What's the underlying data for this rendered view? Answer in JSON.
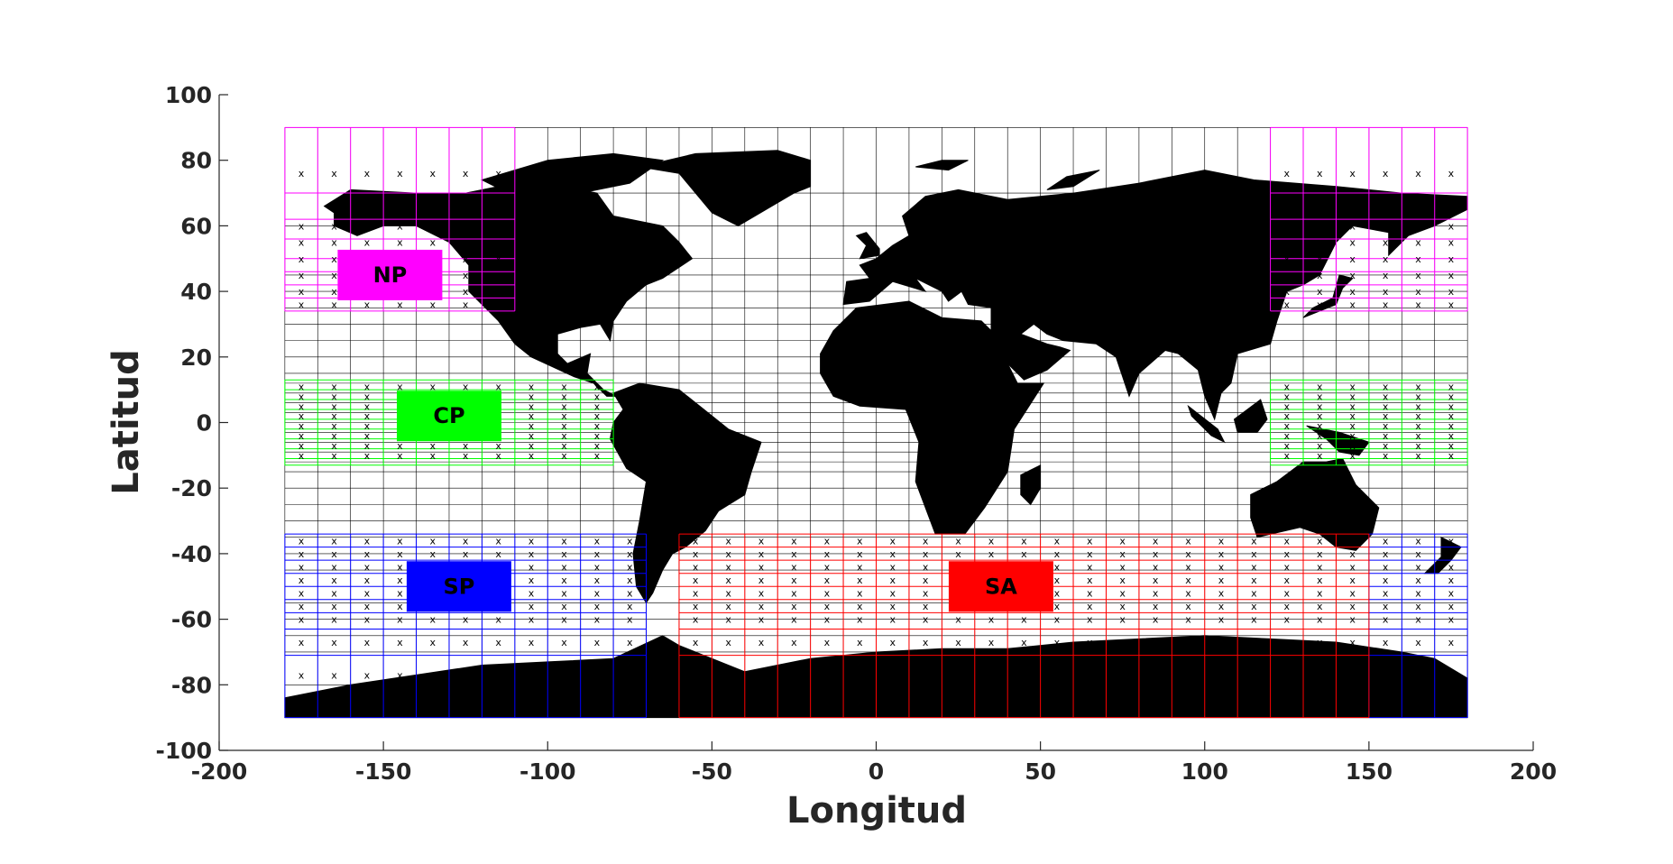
{
  "chart_data": {
    "type": "scatter",
    "title": "",
    "xlabel": "Longitud",
    "ylabel": "Latitud",
    "xlim": [
      -200,
      200
    ],
    "ylim": [
      -100,
      100
    ],
    "x_ticks": [
      "-200",
      "-150",
      "-100",
      "-50",
      "0",
      "50",
      "100",
      "150",
      "200"
    ],
    "y_ticks": [
      "100",
      "80",
      "60",
      "40",
      "20",
      "0",
      "-20",
      "-40",
      "-60",
      "-80",
      "-100"
    ],
    "grid": {
      "lon_range": [
        -180,
        180
      ],
      "lat_range": [
        -90,
        90
      ],
      "lon_step": 10,
      "lat_lines": [
        90,
        70,
        60,
        50,
        45,
        40,
        35,
        30,
        25,
        20,
        15,
        12,
        9,
        6,
        3,
        0,
        -3,
        -6,
        -9,
        -12,
        -15,
        -20,
        -25,
        -30,
        -35,
        -40,
        -45,
        -50,
        -55,
        -60,
        -65,
        -70,
        -80,
        -90
      ],
      "color": "#000000"
    },
    "regions": [
      {
        "name": "NP",
        "color": "#ff00ff",
        "label": "NP",
        "label_center": [
          -148,
          45
        ],
        "boxes": [
          {
            "lon": [
              -180,
              -110
            ],
            "lat": [
              34,
              90
            ]
          },
          {
            "lon": [
              120,
              180
            ],
            "lat": [
              34,
              90
            ]
          }
        ],
        "lat_lines": [
          90,
          70,
          62,
          56,
          50,
          46,
          42,
          38,
          34
        ],
        "marker_lats": [
          76,
          60,
          55,
          50,
          45,
          40,
          36
        ]
      },
      {
        "name": "CP",
        "color": "#00ff00",
        "label": "CP",
        "label_center": [
          -130,
          2
        ],
        "boxes": [
          {
            "lon": [
              -180,
              -80
            ],
            "lat": [
              -13,
              13
            ]
          },
          {
            "lon": [
              120,
              180
            ],
            "lat": [
              -13,
              13
            ]
          }
        ],
        "lat_lines": [
          13,
          10,
          7,
          4,
          1,
          -2,
          -5,
          -8,
          -11,
          -13
        ],
        "marker_lats": [
          11,
          8,
          5,
          2,
          -1,
          -4,
          -7,
          -10
        ]
      },
      {
        "name": "SP",
        "color": "#0000ff",
        "label": "SP",
        "label_center": [
          -127,
          -50
        ],
        "boxes": [
          {
            "lon": [
              -180,
              -70
            ],
            "lat": [
              -34,
              -90
            ]
          },
          {
            "lon": [
              150,
              180
            ],
            "lat": [
              -34,
              -90
            ]
          }
        ],
        "lat_lines": [
          -34,
          -38,
          -42,
          -46,
          -50,
          -54,
          -58,
          -63,
          -71,
          -90
        ],
        "marker_lats": [
          -36,
          -40,
          -44,
          -48,
          -52,
          -56,
          -60,
          -67,
          -77
        ]
      },
      {
        "name": "SA",
        "color": "#ff0000",
        "label": "SA",
        "label_center": [
          38,
          -50
        ],
        "boxes": [
          {
            "lon": [
              -60,
              150
            ],
            "lat": [
              -34,
              -90
            ]
          }
        ],
        "lat_lines": [
          -34,
          -38,
          -42,
          -46,
          -50,
          -54,
          -58,
          -63,
          -71,
          -90
        ],
        "marker_lats": [
          -36,
          -40,
          -44,
          -48,
          -52,
          -56,
          -60,
          -67,
          -77
        ]
      }
    ],
    "marker": "x"
  },
  "map": {
    "land_color": "#000000",
    "continents": [
      {
        "name": "North America",
        "points": [
          [
            -168,
            66
          ],
          [
            -160,
            71
          ],
          [
            -140,
            70
          ],
          [
            -125,
            70
          ],
          [
            -110,
            73
          ],
          [
            -95,
            72
          ],
          [
            -85,
            70
          ],
          [
            -80,
            63
          ],
          [
            -65,
            60
          ],
          [
            -60,
            55
          ],
          [
            -56,
            50
          ],
          [
            -65,
            44
          ],
          [
            -70,
            42
          ],
          [
            -76,
            37
          ],
          [
            -80,
            31
          ],
          [
            -81,
            25
          ],
          [
            -84,
            30
          ],
          [
            -90,
            29
          ],
          [
            -97,
            27
          ],
          [
            -97,
            21
          ],
          [
            -94,
            18
          ],
          [
            -87,
            21
          ],
          [
            -88,
            15
          ],
          [
            -83,
            10
          ],
          [
            -79,
            8
          ],
          [
            -82,
            8
          ],
          [
            -86,
            12
          ],
          [
            -92,
            14
          ],
          [
            -105,
            20
          ],
          [
            -110,
            24
          ],
          [
            -115,
            31
          ],
          [
            -118,
            34
          ],
          [
            -124,
            40
          ],
          [
            -124,
            48
          ],
          [
            -130,
            55
          ],
          [
            -140,
            60
          ],
          [
            -150,
            60
          ],
          [
            -158,
            57
          ],
          [
            -165,
            60
          ],
          [
            -165,
            64
          ]
        ]
      },
      {
        "name": "Greenland",
        "points": [
          [
            -72,
            78
          ],
          [
            -55,
            82
          ],
          [
            -30,
            83
          ],
          [
            -20,
            80
          ],
          [
            -20,
            72
          ],
          [
            -25,
            70
          ],
          [
            -42,
            60
          ],
          [
            -50,
            64
          ],
          [
            -55,
            70
          ],
          [
            -60,
            76
          ]
        ]
      },
      {
        "name": "Canadian Arctic",
        "points": [
          [
            -120,
            74
          ],
          [
            -100,
            80
          ],
          [
            -80,
            82
          ],
          [
            -65,
            80
          ],
          [
            -75,
            73
          ],
          [
            -90,
            70
          ],
          [
            -110,
            69
          ]
        ]
      },
      {
        "name": "South America",
        "points": [
          [
            -80,
            9
          ],
          [
            -72,
            12
          ],
          [
            -60,
            10
          ],
          [
            -50,
            2
          ],
          [
            -45,
            -2
          ],
          [
            -35,
            -6
          ],
          [
            -38,
            -15
          ],
          [
            -40,
            -22
          ],
          [
            -48,
            -27
          ],
          [
            -52,
            -33
          ],
          [
            -58,
            -38
          ],
          [
            -62,
            -40
          ],
          [
            -65,
            -45
          ],
          [
            -68,
            -52
          ],
          [
            -70,
            -55
          ],
          [
            -73,
            -50
          ],
          [
            -74,
            -40
          ],
          [
            -72,
            -30
          ],
          [
            -70,
            -18
          ],
          [
            -76,
            -14
          ],
          [
            -81,
            -5
          ],
          [
            -80,
            0
          ],
          [
            -77,
            4
          ]
        ]
      },
      {
        "name": "Eurasia",
        "points": [
          [
            -10,
            36
          ],
          [
            -9,
            43
          ],
          [
            -2,
            44
          ],
          [
            -5,
            48
          ],
          [
            0,
            50
          ],
          [
            5,
            54
          ],
          [
            10,
            57
          ],
          [
            8,
            63
          ],
          [
            15,
            69
          ],
          [
            25,
            71
          ],
          [
            40,
            68
          ],
          [
            60,
            70
          ],
          [
            80,
            73
          ],
          [
            100,
            77
          ],
          [
            115,
            74
          ],
          [
            140,
            72
          ],
          [
            160,
            70
          ],
          [
            180,
            69
          ],
          [
            180,
            65
          ],
          [
            170,
            60
          ],
          [
            162,
            57
          ],
          [
            156,
            51
          ],
          [
            156,
            58
          ],
          [
            145,
            60
          ],
          [
            140,
            55
          ],
          [
            135,
            45
          ],
          [
            130,
            42
          ],
          [
            125,
            40
          ],
          [
            122,
            31
          ],
          [
            120,
            24
          ],
          [
            110,
            21
          ],
          [
            108,
            12
          ],
          [
            105,
            9
          ],
          [
            103,
            1
          ],
          [
            100,
            8
          ],
          [
            98,
            16
          ],
          [
            92,
            21
          ],
          [
            88,
            22
          ],
          [
            80,
            15
          ],
          [
            77,
            8
          ],
          [
            73,
            20
          ],
          [
            67,
            24
          ],
          [
            57,
            25
          ],
          [
            52,
            27
          ],
          [
            48,
            30
          ],
          [
            44,
            27
          ],
          [
            52,
            24
          ],
          [
            56,
            23
          ],
          [
            59,
            22
          ],
          [
            52,
            16
          ],
          [
            45,
            13
          ],
          [
            40,
            18
          ],
          [
            35,
            28
          ],
          [
            35,
            35
          ],
          [
            28,
            36
          ],
          [
            26,
            40
          ],
          [
            22,
            37
          ],
          [
            20,
            40
          ],
          [
            12,
            44
          ],
          [
            15,
            40
          ],
          [
            5,
            43
          ],
          [
            -2,
            37
          ]
        ]
      },
      {
        "name": "Africa",
        "points": [
          [
            -17,
            21
          ],
          [
            -13,
            28
          ],
          [
            -6,
            35
          ],
          [
            10,
            37
          ],
          [
            20,
            32
          ],
          [
            32,
            31
          ],
          [
            35,
            28
          ],
          [
            43,
            12
          ],
          [
            51,
            12
          ],
          [
            42,
            -2
          ],
          [
            40,
            -15
          ],
          [
            33,
            -26
          ],
          [
            27,
            -34
          ],
          [
            18,
            -34
          ],
          [
            12,
            -18
          ],
          [
            13,
            -6
          ],
          [
            9,
            4
          ],
          [
            -5,
            5
          ],
          [
            -13,
            8
          ],
          [
            -17,
            15
          ]
        ]
      },
      {
        "name": "Australia",
        "points": [
          [
            114,
            -22
          ],
          [
            122,
            -18
          ],
          [
            130,
            -12
          ],
          [
            137,
            -12
          ],
          [
            142,
            -11
          ],
          [
            146,
            -19
          ],
          [
            153,
            -26
          ],
          [
            151,
            -34
          ],
          [
            146,
            -39
          ],
          [
            140,
            -38
          ],
          [
            135,
            -34
          ],
          [
            129,
            -32
          ],
          [
            116,
            -35
          ],
          [
            114,
            -29
          ]
        ]
      },
      {
        "name": "Antarctica",
        "points": [
          [
            -180,
            -84
          ],
          [
            -160,
            -80
          ],
          [
            -140,
            -77
          ],
          [
            -120,
            -74
          ],
          [
            -100,
            -73
          ],
          [
            -80,
            -72
          ],
          [
            -65,
            -65
          ],
          [
            -60,
            -68
          ],
          [
            -40,
            -76
          ],
          [
            -20,
            -72
          ],
          [
            0,
            -70
          ],
          [
            20,
            -69
          ],
          [
            40,
            -69
          ],
          [
            60,
            -67
          ],
          [
            80,
            -66
          ],
          [
            100,
            -65
          ],
          [
            120,
            -66
          ],
          [
            140,
            -67
          ],
          [
            160,
            -70
          ],
          [
            170,
            -72
          ],
          [
            180,
            -78
          ],
          [
            180,
            -90
          ],
          [
            -180,
            -90
          ]
        ]
      },
      {
        "name": "Madagascar",
        "points": [
          [
            44,
            -16
          ],
          [
            50,
            -13
          ],
          [
            50,
            -20
          ],
          [
            47,
            -25
          ],
          [
            44,
            -22
          ]
        ]
      },
      {
        "name": "Japan",
        "points": [
          [
            130,
            32
          ],
          [
            135,
            34
          ],
          [
            140,
            36
          ],
          [
            142,
            41
          ],
          [
            145,
            44
          ],
          [
            141,
            45
          ],
          [
            139,
            38
          ],
          [
            133,
            35
          ]
        ]
      },
      {
        "name": "Borneo",
        "points": [
          [
            109,
            1
          ],
          [
            113,
            4
          ],
          [
            117,
            7
          ],
          [
            119,
            1
          ],
          [
            116,
            -3
          ],
          [
            110,
            -3
          ]
        ]
      },
      {
        "name": "Sumatra",
        "points": [
          [
            95,
            5
          ],
          [
            104,
            -2
          ],
          [
            106,
            -6
          ],
          [
            102,
            -4
          ],
          [
            96,
            2
          ]
        ]
      },
      {
        "name": "New Guinea",
        "points": [
          [
            131,
            -1
          ],
          [
            141,
            -3
          ],
          [
            150,
            -6
          ],
          [
            147,
            -10
          ],
          [
            141,
            -9
          ],
          [
            137,
            -5
          ]
        ]
      },
      {
        "name": "New Zealand",
        "points": [
          [
            172,
            -35
          ],
          [
            178,
            -38
          ],
          [
            175,
            -42
          ],
          [
            171,
            -46
          ],
          [
            167,
            -46
          ],
          [
            172,
            -41
          ]
        ]
      },
      {
        "name": "Great Britain",
        "points": [
          [
            -5,
            50
          ],
          [
            1,
            51
          ],
          [
            1,
            53
          ],
          [
            -3,
            58
          ],
          [
            -6,
            57
          ],
          [
            -3,
            54
          ]
        ]
      },
      {
        "name": "Svalbard",
        "points": [
          [
            12,
            78
          ],
          [
            20,
            80
          ],
          [
            28,
            80
          ],
          [
            22,
            77
          ]
        ]
      },
      {
        "name": "Novaya Zemlya",
        "points": [
          [
            52,
            71
          ],
          [
            58,
            75
          ],
          [
            68,
            77
          ],
          [
            60,
            72
          ]
        ]
      }
    ]
  }
}
